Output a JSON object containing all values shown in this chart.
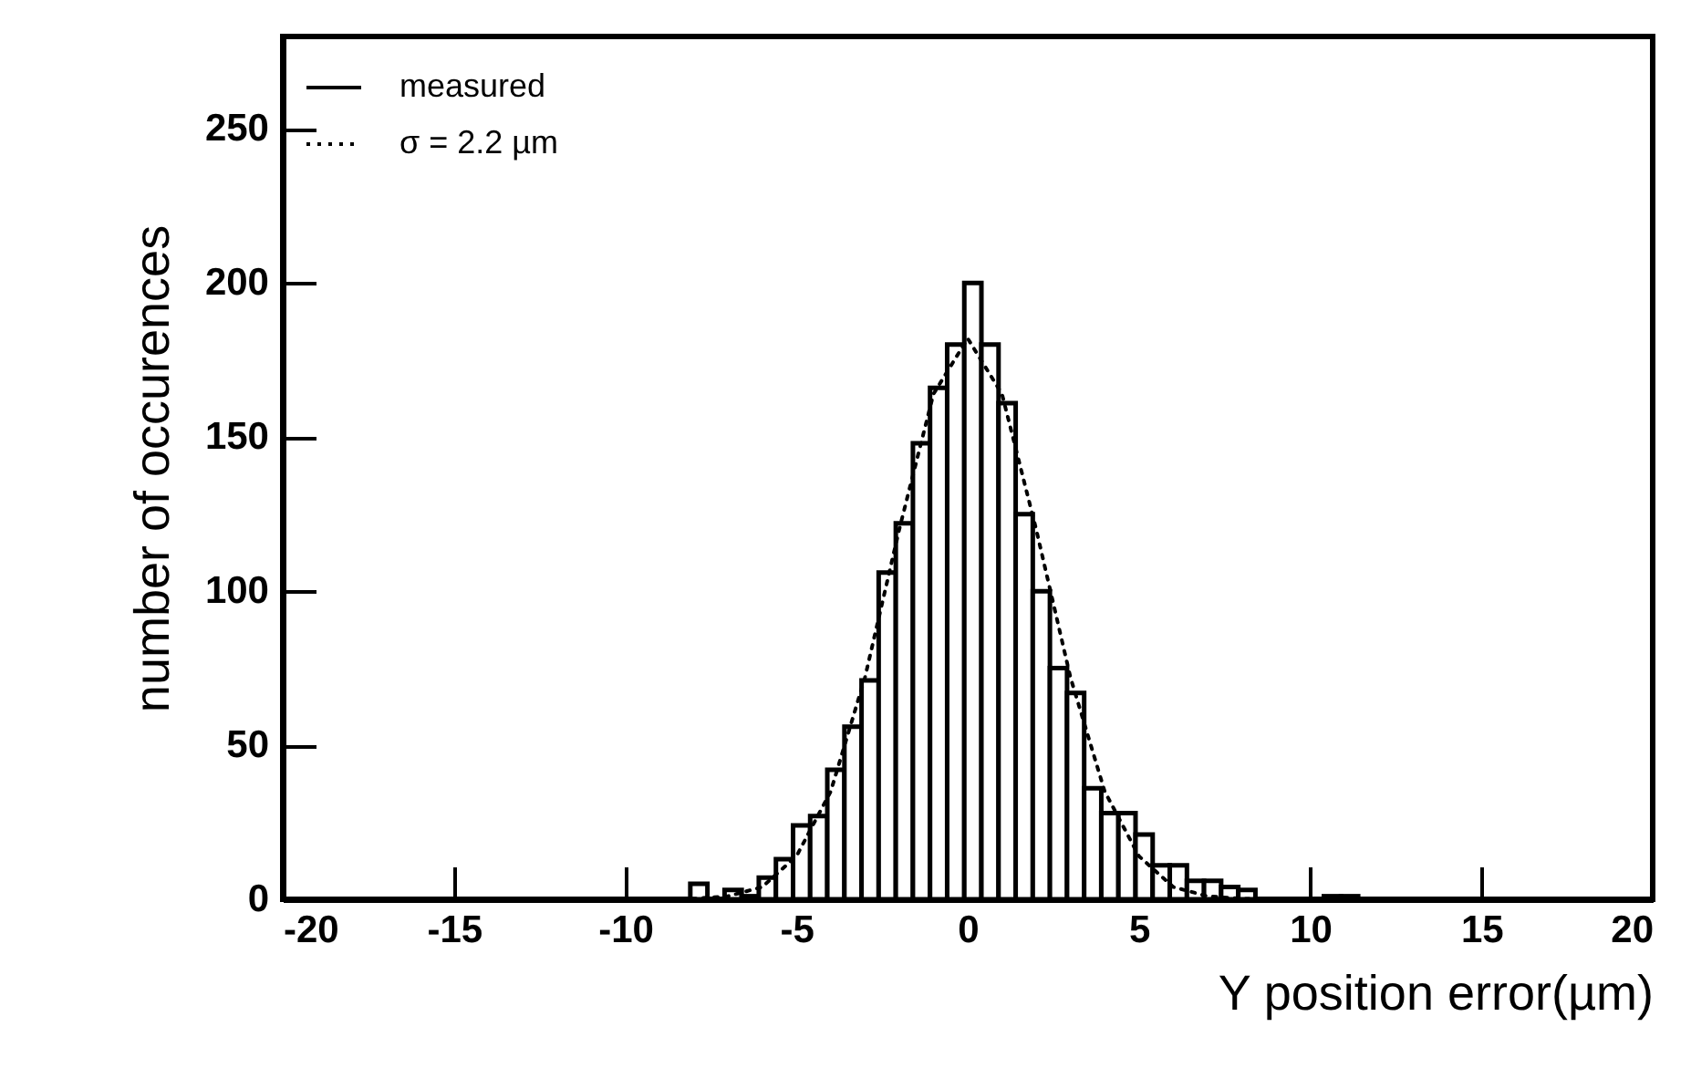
{
  "chart_data": {
    "type": "histogram",
    "xlabel": "Y position error(µm)",
    "ylabel": "number of occurences",
    "xlim": [
      -20,
      20
    ],
    "xticks": [
      -20,
      -15,
      -10,
      -5,
      0,
      5,
      10,
      15,
      20
    ],
    "ylim": [
      0,
      280
    ],
    "yticks": [
      0,
      50,
      100,
      150,
      200,
      250
    ],
    "legend": "top left",
    "grid": false,
    "series": [
      {
        "name": "measured",
        "type": "histogram",
        "color": "#000000",
        "line_style": "solid",
        "bins": [
          -8.6,
          -8.1,
          -7.6,
          -7.1,
          -6.6,
          -6.1,
          -5.6,
          -5.1,
          -4.6,
          -4.1,
          -3.6,
          -3.1,
          -2.6,
          -2.1,
          -1.6,
          -1.1,
          -0.6,
          -0.1,
          0.4,
          0.9,
          1.4,
          1.9,
          2.4,
          2.9,
          3.4,
          3.9,
          4.4,
          4.9,
          5.4,
          5.9,
          6.4,
          6.9,
          7.4,
          7.9,
          8.4,
          8.9,
          9.4,
          9.9,
          10.4,
          10.9,
          11.4,
          11.9
        ],
        "values": [
          null,
          5,
          null,
          3,
          1,
          7,
          13,
          24,
          27,
          42,
          56,
          71,
          106,
          122,
          148,
          166,
          180,
          200,
          180,
          161,
          125,
          100,
          75,
          67,
          36,
          28,
          28,
          21,
          11,
          11,
          6,
          6,
          4,
          3,
          0,
          0,
          0,
          0,
          1,
          1,
          0
        ]
      },
      {
        "name": "σ = 2.2 µm",
        "type": "line",
        "color": "#000000",
        "line_style": "dotted",
        "x": [
          -9,
          -8,
          -7,
          -6,
          -5,
          -4,
          -3,
          -2,
          -1,
          0,
          1,
          2,
          3,
          4,
          5,
          6,
          7,
          8,
          9
        ],
        "values": [
          0,
          0.2,
          1,
          4,
          14,
          35,
          72,
          120,
          164,
          182,
          164,
          120,
          72,
          35,
          14,
          4,
          1,
          0.2,
          0
        ]
      }
    ]
  }
}
